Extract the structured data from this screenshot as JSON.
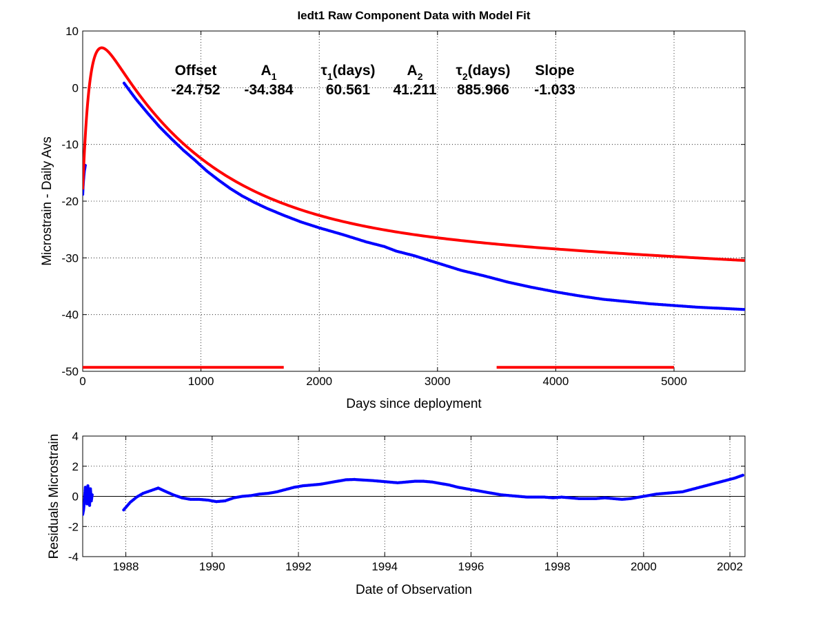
{
  "chart_data": [
    {
      "type": "line",
      "title": "Iedt1  Raw Component Data with Model Fit",
      "xlabel": "Days since deployment",
      "ylabel": "Microstrain - Daily Avs",
      "xlim": [
        0,
        5600
      ],
      "ylim": [
        -50,
        10
      ],
      "xticks": [
        0,
        1000,
        2000,
        3000,
        4000,
        5000
      ],
      "yticks": [
        10,
        0,
        -10,
        -20,
        -30,
        -40,
        -50
      ],
      "grid": true,
      "parameters": {
        "headers": [
          {
            "main": "Offset",
            "sub": ""
          },
          {
            "main": "A",
            "sub": "1"
          },
          {
            "main": "τ",
            "sub": "1",
            "suffix": "(days)"
          },
          {
            "main": "A",
            "sub": "2"
          },
          {
            "main": "τ",
            "sub": "2",
            "suffix": "(days)"
          },
          {
            "main": "Slope",
            "sub": ""
          }
        ],
        "values": [
          "-24.752",
          "-34.384",
          "60.561",
          "41.211",
          "885.966",
          "-1.033"
        ]
      },
      "model": {
        "offset": -24.752,
        "A1": -34.384,
        "tau1": 60.561,
        "A2": 41.211,
        "tau2": 885.966,
        "slope_per_1000d": -1.033,
        "x_range": [
          0,
          5600
        ],
        "color": "#ff0000"
      },
      "series": [
        {
          "color": "#0000ff",
          "x": [
            0,
            3,
            6,
            10,
            14,
            18,
            22
          ],
          "y": [
            -18.8,
            -17.5,
            -16.5,
            -15.5,
            -14.7,
            -14.2,
            -13.7
          ]
        },
        {
          "color": "#0000ff",
          "x": [
            350,
            450,
            550,
            650,
            750,
            850,
            950,
            1050,
            1150,
            1250,
            1350,
            1450,
            1550,
            1700,
            1850,
            2000,
            2200,
            2400,
            2550,
            2650,
            2800,
            3000,
            3200,
            3400,
            3600,
            3800,
            4000,
            4200,
            4400,
            4600,
            4800,
            5000,
            5200,
            5400,
            5600
          ],
          "y": [
            0.8,
            -2.0,
            -4.5,
            -6.9,
            -9.0,
            -11.0,
            -12.8,
            -14.7,
            -16.3,
            -17.8,
            -19.1,
            -20.2,
            -21.2,
            -22.5,
            -23.7,
            -24.7,
            -25.9,
            -27.2,
            -28.0,
            -28.8,
            -29.6,
            -30.9,
            -32.2,
            -33.2,
            -34.3,
            -35.2,
            -36.0,
            -36.7,
            -37.3,
            -37.7,
            -38.1,
            -38.4,
            -38.7,
            -38.9,
            -39.1
          ]
        }
      ],
      "fit_ranges": [
        [
          0,
          1700
        ],
        [
          3500,
          5000
        ]
      ],
      "fit_range_y": -49.3
    },
    {
      "type": "scatter",
      "xlabel": "Date of Observation",
      "ylabel": "Residuals Microstrain",
      "xlim": [
        1987.0,
        2002.35
      ],
      "ylim": [
        -4,
        4
      ],
      "xticks": [
        1988,
        1990,
        1992,
        1994,
        1996,
        1998,
        2000,
        2002
      ],
      "yticks": [
        4,
        2,
        0,
        -2,
        -4
      ],
      "grid": true,
      "zero_line": true,
      "series": [
        {
          "color": "#0000ff",
          "x": [
            1987.0,
            1987.02,
            1987.04,
            1987.06,
            1987.08,
            1987.1,
            1987.12,
            1987.14,
            1987.16,
            1987.18,
            1987.2,
            1987.22
          ],
          "y": [
            -1.2,
            -0.9,
            -0.3,
            0.6,
            0.3,
            -0.5,
            0.7,
            0.2,
            -0.6,
            0.5,
            -0.3,
            0.1
          ]
        },
        {
          "color": "#0000ff",
          "x": [
            1987.95,
            1988.1,
            1988.25,
            1988.4,
            1988.55,
            1988.7,
            1988.75,
            1988.9,
            1989.1,
            1989.3,
            1989.5,
            1989.7,
            1989.9,
            1990.1,
            1990.3,
            1990.5,
            1990.7,
            1990.9,
            1991.1,
            1991.3,
            1991.5,
            1991.7,
            1991.9,
            1992.1,
            1992.3,
            1992.5,
            1992.7,
            1992.9,
            1993.1,
            1993.3,
            1993.5,
            1993.7,
            1993.9,
            1994.1,
            1994.3,
            1994.5,
            1994.7,
            1994.9,
            1995.1,
            1995.3,
            1995.5,
            1995.7,
            1995.9,
            1996.1,
            1996.3,
            1996.5,
            1996.7,
            1996.9,
            1997.1,
            1997.3,
            1997.5,
            1997.7,
            1997.9,
            1998.1,
            1998.3,
            1998.5,
            1998.7,
            1998.9,
            1999.1,
            1999.3,
            1999.5,
            1999.7,
            1999.9,
            2000.1,
            2000.3,
            2000.5,
            2000.7,
            2000.9,
            2001.1,
            2001.3,
            2001.5,
            2001.7,
            2001.9,
            2002.1,
            2002.3
          ],
          "y": [
            -0.9,
            -0.4,
            -0.05,
            0.2,
            0.35,
            0.5,
            0.55,
            0.35,
            0.1,
            -0.1,
            -0.2,
            -0.2,
            -0.25,
            -0.35,
            -0.3,
            -0.1,
            0.0,
            0.05,
            0.15,
            0.2,
            0.3,
            0.45,
            0.6,
            0.7,
            0.75,
            0.8,
            0.9,
            1.0,
            1.1,
            1.12,
            1.08,
            1.05,
            1.0,
            0.95,
            0.9,
            0.95,
            1.0,
            1.0,
            0.95,
            0.85,
            0.75,
            0.6,
            0.5,
            0.4,
            0.3,
            0.2,
            0.1,
            0.05,
            0.0,
            -0.05,
            -0.05,
            -0.05,
            -0.1,
            -0.05,
            -0.1,
            -0.15,
            -0.15,
            -0.15,
            -0.1,
            -0.15,
            -0.2,
            -0.15,
            -0.05,
            0.05,
            0.15,
            0.2,
            0.25,
            0.3,
            0.45,
            0.6,
            0.75,
            0.9,
            1.05,
            1.2,
            1.4
          ]
        }
      ]
    }
  ]
}
